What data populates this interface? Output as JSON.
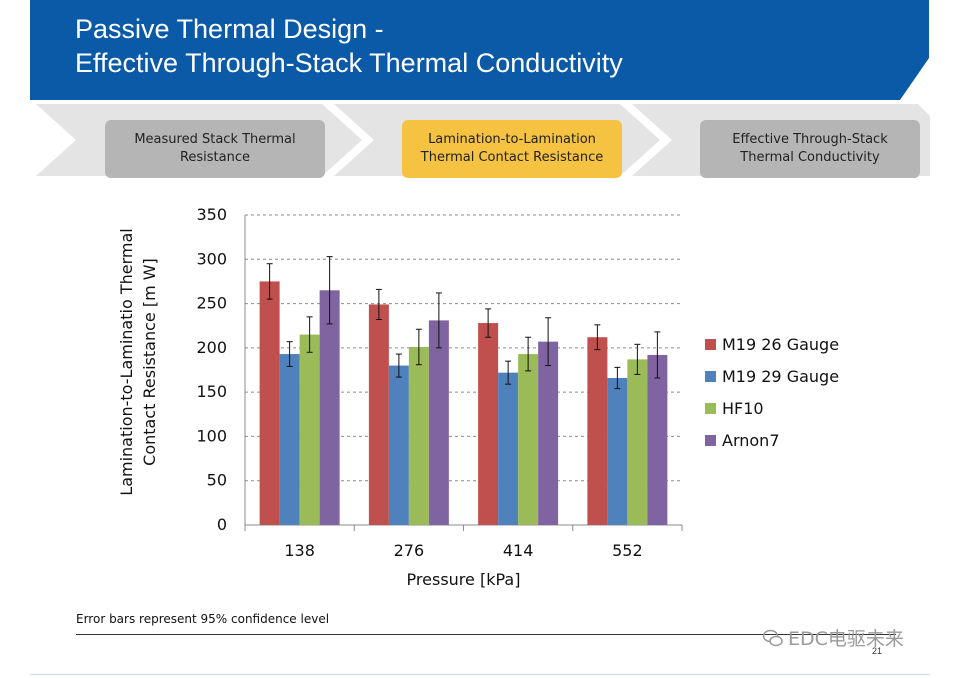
{
  "header": {
    "title_line1": "Passive Thermal Design -",
    "title_line2": "Effective Through-Stack Thermal Conductivity",
    "banner_color": "#0a5aa8"
  },
  "process_steps": [
    {
      "line1": "Measured Stack Thermal",
      "line2": "Resistance",
      "state": "inactive"
    },
    {
      "line1": "Lamination-to-Lamination",
      "line2": "Thermal Contact Resistance",
      "state": "active"
    },
    {
      "line1": "Effective Through-Stack",
      "line2": "Thermal Conductivity",
      "state": "inactive"
    }
  ],
  "chart_data": {
    "type": "bar",
    "categories": [
      "138",
      "276",
      "414",
      "552"
    ],
    "xlabel": "Pressure [kPa]",
    "ylabel_line1": "Lamination-to-Laminatio    Thermal",
    "ylabel_line2": "Contact Resistance [m         W]",
    "ylim": [
      0,
      350
    ],
    "yticks": [
      0,
      50,
      100,
      150,
      200,
      250,
      300,
      350
    ],
    "grid": "horizontal dashed",
    "legend_position": "right",
    "series": [
      {
        "name": "M19 26 Gauge",
        "color": "#c0504d",
        "values": [
          275,
          249,
          228,
          212
        ],
        "err": [
          20,
          17,
          16,
          14
        ]
      },
      {
        "name": "M19 29 Gauge",
        "color": "#4f81bd",
        "values": [
          193,
          180,
          172,
          166
        ],
        "err": [
          14,
          13,
          13,
          12
        ]
      },
      {
        "name": "HF10",
        "color": "#9bbb59",
        "values": [
          215,
          201,
          193,
          187
        ],
        "err": [
          20,
          20,
          19,
          17
        ]
      },
      {
        "name": "Arnon7",
        "color": "#8064a2",
        "values": [
          265,
          231,
          207,
          192
        ],
        "err": [
          38,
          31,
          27,
          26
        ]
      }
    ]
  },
  "footer": {
    "note": "Error bars represent 95% confidence level",
    "page_number": "21",
    "watermark": "EDC电驱未来"
  }
}
